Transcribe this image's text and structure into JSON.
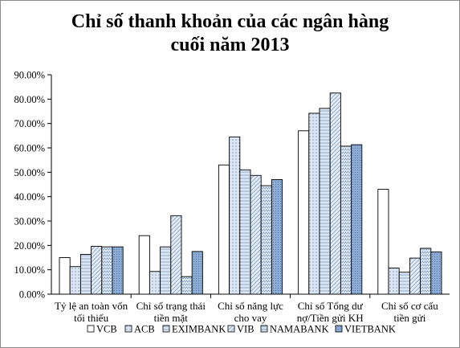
{
  "chart_data": {
    "type": "bar",
    "title_lines": [
      "Chỉ số thanh khoản của các ngân hàng",
      "cuối năm 2013"
    ],
    "categories": [
      [
        "Tỷ lệ an toàn vốn",
        "tối thiểu"
      ],
      [
        "Chỉ số trạng thái",
        "tiền mặt"
      ],
      [
        "Chỉ số năng lực",
        "cho vay"
      ],
      [
        "Chỉ số Tổng dư",
        "nợ/Tiền gửi KH"
      ],
      [
        "Chỉ số cơ cấu",
        "tiền gửi"
      ]
    ],
    "series": [
      {
        "name": "VCB",
        "values": [
          0.15,
          0.24,
          0.53,
          0.67,
          0.43
        ]
      },
      {
        "name": "ACB",
        "values": [
          0.113,
          0.093,
          0.645,
          0.742,
          0.107
        ]
      },
      {
        "name": "EXIMBANK",
        "values": [
          0.163,
          0.194,
          0.51,
          0.762,
          0.09
        ]
      },
      {
        "name": "VIB",
        "values": [
          0.196,
          0.322,
          0.487,
          0.825,
          0.148
        ]
      },
      {
        "name": "NAMABANK",
        "values": [
          0.194,
          0.072,
          0.445,
          0.607,
          0.188
        ]
      },
      {
        "name": "VIETBANK",
        "values": [
          0.194,
          0.175,
          0.47,
          0.613,
          0.173
        ]
      }
    ],
    "y_ticks": [
      "0.00%",
      "10.00%",
      "20.00%",
      "30.00%",
      "40.00%",
      "50.00%",
      "60.00%",
      "70.00%",
      "80.00%",
      "90.00%"
    ],
    "ylim": [
      0,
      0.9
    ],
    "grid": false,
    "legend_position": "bottom",
    "series_styles": [
      {
        "fill": "#ffffff",
        "pattern": "none"
      },
      {
        "fill": "#dce6f2",
        "pattern": "dots"
      },
      {
        "fill": "#dce6f2",
        "pattern": "hlines"
      },
      {
        "fill": "#dce6f2",
        "pattern": "diag"
      },
      {
        "fill": "#dce6f2",
        "pattern": "zigzag"
      },
      {
        "fill": "#95b3d7",
        "pattern": "dots-dark"
      }
    ],
    "bar_stroke": "#000000"
  }
}
